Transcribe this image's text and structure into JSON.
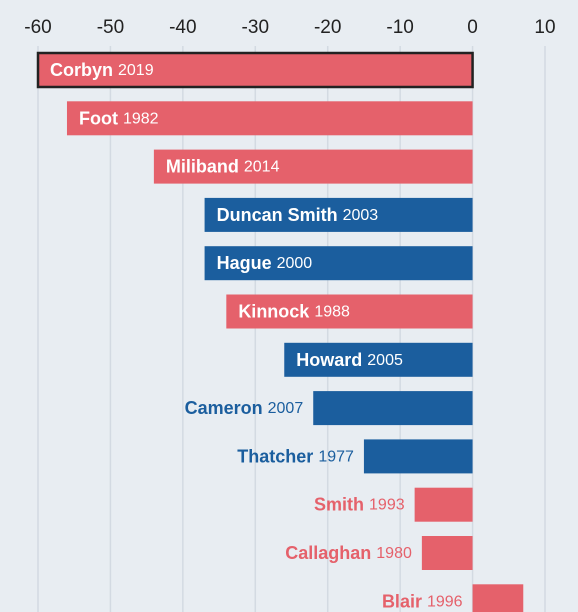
{
  "chart_data": {
    "type": "barh",
    "categories": [
      {
        "name": "Corbyn",
        "year": "2019"
      },
      {
        "name": "Foot",
        "year": "1982"
      },
      {
        "name": "Miliband",
        "year": "2014"
      },
      {
        "name": "Duncan Smith",
        "year": "2003"
      },
      {
        "name": "Hague",
        "year": "2000"
      },
      {
        "name": "Kinnock",
        "year": "1988"
      },
      {
        "name": "Howard",
        "year": "2005"
      },
      {
        "name": "Cameron",
        "year": "2007"
      },
      {
        "name": "Thatcher",
        "year": "1977"
      },
      {
        "name": "Smith",
        "year": "1993"
      },
      {
        "name": "Callaghan",
        "year": "1980"
      },
      {
        "name": "Blair",
        "year": "1996"
      }
    ],
    "values": [
      -60,
      -56,
      -44,
      -37,
      -37,
      -34,
      -26,
      -22,
      -15,
      -8,
      -7,
      7
    ],
    "colors": [
      "#e5616b",
      "#e5616b",
      "#e5616b",
      "#1b5e9e",
      "#1b5e9e",
      "#e5616b",
      "#1b5e9e",
      "#1b5e9e",
      "#1b5e9e",
      "#e5616b",
      "#e5616b",
      "#e5616b"
    ],
    "highlight": 0,
    "xlim": [
      -60,
      10
    ],
    "xticks": [
      -60,
      -50,
      -40,
      -30,
      -20,
      -10,
      0,
      10
    ],
    "grid": true
  }
}
